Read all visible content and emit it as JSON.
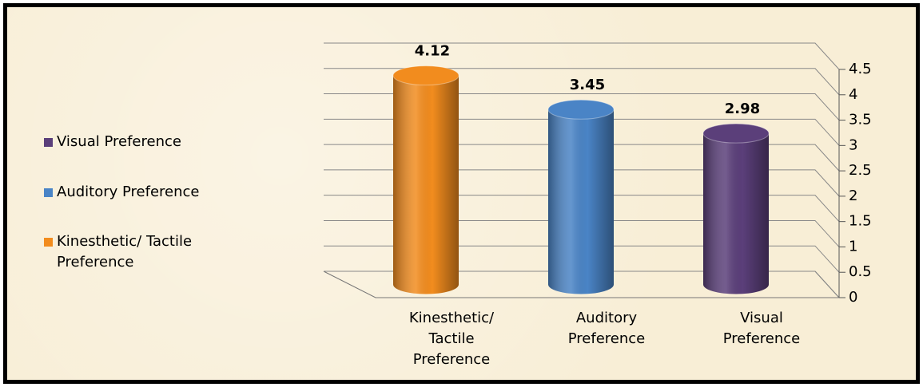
{
  "chart_data": {
    "type": "bar3d",
    "categories": [
      "Kinesthetic/ Tactile Preference",
      "Auditory Preference",
      "Visual Preference"
    ],
    "values": [
      4.12,
      3.45,
      2.98
    ],
    "colors": [
      "#f28c1e",
      "#4a84c6",
      "#5b3f7a"
    ],
    "ylim": [
      0,
      4.5
    ],
    "yticks": [
      0,
      0.5,
      1,
      1.5,
      2,
      2.5,
      3,
      3.5,
      4,
      4.5
    ],
    "grid": true,
    "legend": "left"
  }
}
